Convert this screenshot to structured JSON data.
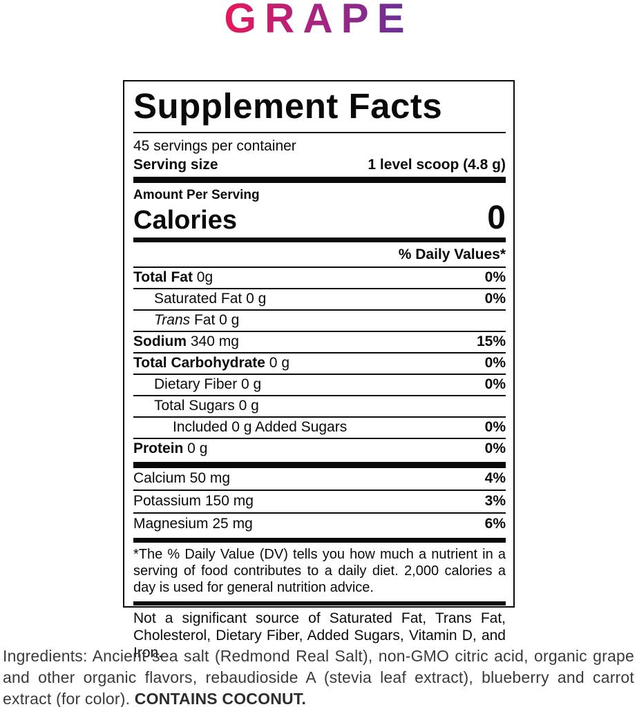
{
  "flavor": {
    "title": "GRAPE",
    "gradient_start": "#e8175d",
    "gradient_mid": "#a62580",
    "gradient_end": "#643197"
  },
  "label": {
    "title": "Supplement Facts",
    "servings_per_container": "45 servings per container",
    "serving_size_label": "Serving size",
    "serving_size_value": "1 level scoop (4.8 g)",
    "amount_per_serving": "Amount Per Serving",
    "calories_label": "Calories",
    "calories_value": "0",
    "daily_values_header": "% Daily Values*",
    "rows": [
      {
        "bold": "Total Fat",
        "italic": "",
        "rest": " 0g",
        "dv": "0%"
      },
      {
        "bold": "",
        "italic": "",
        "rest": "Saturated Fat 0 g",
        "dv": "0%"
      },
      {
        "bold": "",
        "italic": "Trans",
        "rest": " Fat 0 g",
        "dv": ""
      },
      {
        "bold": "Sodium",
        "italic": "",
        "rest": " 340 mg",
        "dv": "15%"
      },
      {
        "bold": "Total Carbohydrate",
        "italic": "",
        "rest": " 0 g",
        "dv": "0%"
      },
      {
        "bold": "",
        "italic": "",
        "rest": "Dietary Fiber 0 g",
        "dv": "0%"
      },
      {
        "bold": "",
        "italic": "",
        "rest": "Total Sugars 0 g",
        "dv": ""
      },
      {
        "bold": "",
        "italic": "",
        "rest": "Included 0 g Added Sugars",
        "dv": "0%"
      },
      {
        "bold": "Protein",
        "italic": "",
        "rest": " 0 g",
        "dv": "0%"
      }
    ],
    "minerals": [
      {
        "rest": "Calcium 50 mg",
        "dv": "4%"
      },
      {
        "rest": "Potassium 150 mg",
        "dv": "3%"
      },
      {
        "rest": "Magnesium 25 mg",
        "dv": "6%"
      }
    ],
    "footnote": "*The % Daily Value (DV) tells you how much a nutrient in a serving of food contributes to a daily diet. 2,000 calories a day is used for general nutrition advice.",
    "not_significant": "Not a significant source of Saturated Fat, Trans Fat, Cholesterol, Dietary Fiber, Added Sugars, Vitamin D, and Iron."
  },
  "ingredients": {
    "text": "Ingredients: Ancient sea salt (Redmond Real Salt), non-GMO citric acid, organic grape and other organic flavors, rebaudioside A (stevia leaf extract), blueberry and carrot extract (for color). ",
    "contains": "CONTAINS COCONUT."
  }
}
